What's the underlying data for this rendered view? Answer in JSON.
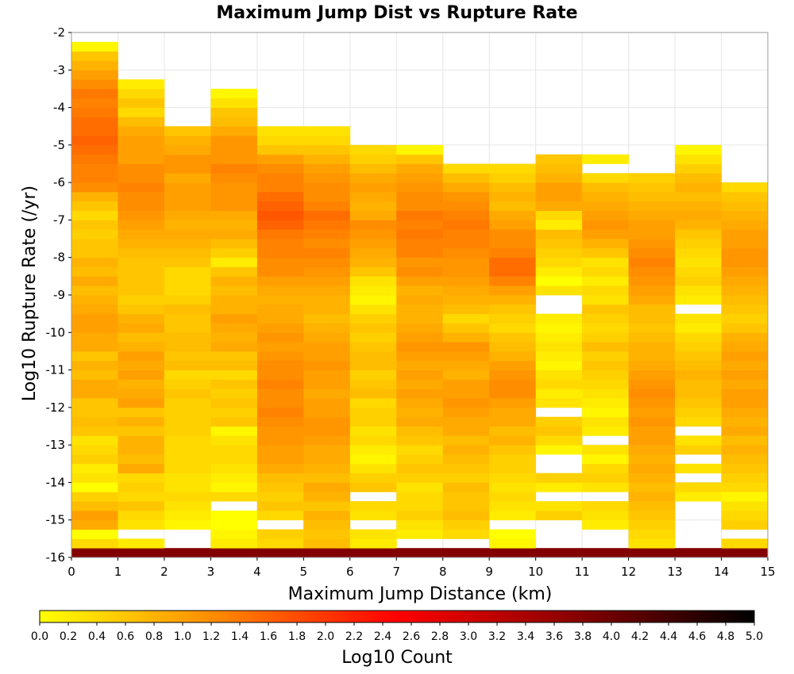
{
  "chart_data": {
    "type": "heatmap",
    "title": "Maximum Jump Dist vs Rupture Rate",
    "xlabel": "Maximum Jump Distance (km)",
    "ylabel": "Log10 Rupture Rate (/yr)",
    "xlim": [
      0,
      15
    ],
    "ylim": [
      -16,
      -2
    ],
    "x_ticks": [
      0,
      1,
      2,
      3,
      4,
      5,
      6,
      7,
      8,
      9,
      10,
      11,
      12,
      13,
      14,
      15
    ],
    "y_ticks": [
      -16,
      -15,
      -14,
      -13,
      -12,
      -11,
      -10,
      -9,
      -8,
      -7,
      -6,
      -5,
      -4,
      -3,
      -2
    ],
    "cell_size": {
      "x": 1,
      "y": 0.25
    },
    "colorbar": {
      "label": "Log10 Count",
      "range": [
        0,
        5
      ],
      "ticks": [
        0.0,
        0.2,
        0.4,
        0.6,
        0.8,
        1.0,
        1.2,
        1.4,
        1.6,
        1.8,
        2.0,
        2.2,
        2.4,
        2.6,
        2.8,
        3.0,
        3.2,
        3.4,
        3.6,
        3.8,
        4.0,
        4.2,
        4.4,
        4.6,
        4.8,
        5.0
      ],
      "tick_labels": [
        "0.0",
        "0.2",
        "0.4",
        "0.6",
        "0.8",
        "1.0",
        "1.2",
        "1.4",
        "1.6",
        "1.8",
        "2.0",
        "2.2",
        "2.4",
        "2.6",
        "2.8",
        "3.0",
        "3.2",
        "3.4",
        "3.6",
        "3.8",
        "4.0",
        "4.2",
        "4.4",
        "4.6",
        "4.8",
        "5.0"
      ],
      "colors": [
        "#ffff00",
        "#ffc400",
        "#ff8800",
        "#ff4400",
        "#ff0000",
        "#c40000",
        "#880000",
        "#440000",
        "#000000"
      ],
      "position": "bottom"
    },
    "columns": [
      {
        "x": 0.5,
        "y_min": -16,
        "values": [
          3.8,
          0.4,
          0.0,
          0.9,
          1.0,
          0.7,
          0.5,
          0.0,
          0.3,
          0.2,
          0.5,
          0.4,
          0.3,
          0.6,
          0.7,
          0.6,
          0.6,
          0.9,
          0.9,
          0.7,
          0.8,
          0.6,
          0.9,
          0.9,
          1.0,
          1.0,
          0.9,
          0.8,
          0.7,
          0.9,
          0.7,
          0.8,
          0.6,
          0.6,
          0.5,
          0.6,
          0.4,
          0.6,
          0.8,
          1.2,
          1.3,
          1.3,
          1.4,
          1.5,
          1.6,
          1.5,
          1.5,
          1.4,
          1.3,
          1.4,
          1.2,
          1.0,
          0.8,
          0.6,
          0.1
        ]
      },
      {
        "x": 1.5,
        "y_min": -16,
        "values": [
          3.8,
          0.2,
          null,
          0.3,
          0.4,
          0.6,
          0.4,
          0.5,
          0.4,
          0.9,
          0.7,
          0.8,
          0.8,
          0.6,
          0.8,
          0.6,
          1.0,
          0.9,
          0.8,
          1.0,
          0.9,
          1.0,
          0.8,
          0.7,
          0.9,
          0.8,
          0.6,
          0.5,
          0.6,
          0.6,
          0.6,
          0.6,
          0.7,
          0.8,
          0.9,
          1.0,
          1.1,
          1.2,
          1.2,
          1.3,
          1.2,
          1.2,
          1.0,
          1.0,
          1.0,
          0.9,
          0.7,
          0.4,
          0.6,
          0.4,
          0.2
        ]
      },
      {
        "x": 2.5,
        "y_min": -16,
        "values": [
          3.8,
          null,
          null,
          0.1,
          0.2,
          0.3,
          0.4,
          0.3,
          0.3,
          0.4,
          0.4,
          0.4,
          0.4,
          0.5,
          0.5,
          0.5,
          0.5,
          0.6,
          0.5,
          0.4,
          0.7,
          0.6,
          0.7,
          0.7,
          0.6,
          0.6,
          0.7,
          0.5,
          0.4,
          0.4,
          0.4,
          0.6,
          0.7,
          0.8,
          0.9,
          0.8,
          0.9,
          1.0,
          1.0,
          1.0,
          0.9,
          1.1,
          1.1,
          0.9,
          0.8,
          0.6
        ]
      },
      {
        "x": 3.5,
        "y_min": -16,
        "values": [
          3.8,
          0.2,
          0.1,
          0.0,
          0.0,
          null,
          0.4,
          0.1,
          0.2,
          0.3,
          0.4,
          0.4,
          0.3,
          0.1,
          0.6,
          0.5,
          0.6,
          0.5,
          0.6,
          0.4,
          0.7,
          0.6,
          0.9,
          0.8,
          0.9,
          1.0,
          0.8,
          0.8,
          0.7,
          0.8,
          0.6,
          0.2,
          0.5,
          0.7,
          0.9,
          0.8,
          0.9,
          1.1,
          1.1,
          1.1,
          1.2,
          1.3,
          1.1,
          1.1,
          1.1,
          0.9,
          0.7,
          0.6,
          0.3,
          0.1
        ]
      },
      {
        "x": 4.5,
        "y_min": -16,
        "values": [
          3.8,
          0.4,
          0.5,
          null,
          0.4,
          0.6,
          0.5,
          0.6,
          0.7,
          0.9,
          1.0,
          1.0,
          1.1,
          1.1,
          1.2,
          1.3,
          1.2,
          1.2,
          1.3,
          1.2,
          1.2,
          1.1,
          1.0,
          1.1,
          1.0,
          0.9,
          0.9,
          0.8,
          0.9,
          1.0,
          1.2,
          1.2,
          1.3,
          1.3,
          1.4,
          1.6,
          1.7,
          1.6,
          1.5,
          1.3,
          1.3,
          1.2,
          1.0,
          0.6,
          0.4,
          0.3
        ]
      },
      {
        "x": 5.5,
        "y_min": -16,
        "values": [
          3.8,
          0.7,
          0.6,
          0.7,
          0.8,
          0.6,
          0.8,
          0.9,
          0.7,
          0.8,
          0.9,
          0.9,
          1.0,
          1.1,
          1.1,
          1.0,
          1.0,
          0.9,
          1.0,
          1.0,
          1.1,
          1.0,
          1.0,
          0.9,
          0.8,
          0.7,
          0.8,
          0.8,
          0.9,
          1.0,
          1.1,
          1.2,
          1.3,
          1.2,
          1.3,
          1.4,
          1.5,
          1.3,
          1.2,
          1.2,
          1.1,
          1.0,
          0.8,
          0.6,
          0.4,
          0.3
        ]
      },
      {
        "x": 6.5,
        "y_min": -16,
        "values": [
          3.8,
          0.2,
          0.3,
          null,
          0.3,
          0.4,
          null,
          0.6,
          0.5,
          0.3,
          0.1,
          0.2,
          0.4,
          0.3,
          0.5,
          0.5,
          0.4,
          0.7,
          0.6,
          0.5,
          0.7,
          0.7,
          0.6,
          0.5,
          0.6,
          0.5,
          0.3,
          0.1,
          0.2,
          0.3,
          0.6,
          0.8,
          0.9,
          1.0,
          1.1,
          1.2,
          0.9,
          0.8,
          0.9,
          1.0,
          0.9,
          0.7,
          0.5,
          0.4
        ]
      },
      {
        "x": 7.5,
        "y_min": -16,
        "values": [
          3.8,
          null,
          0.2,
          0.3,
          0.5,
          0.4,
          0.4,
          0.3,
          0.5,
          0.6,
          0.5,
          0.4,
          0.6,
          0.7,
          0.9,
          0.8,
          0.9,
          1.0,
          0.9,
          1.0,
          0.9,
          1.0,
          1.1,
          1.0,
          0.9,
          0.8,
          0.8,
          0.9,
          0.8,
          1.0,
          1.2,
          1.1,
          1.3,
          1.3,
          1.4,
          1.3,
          1.4,
          1.2,
          1.2,
          1.1,
          1.0,
          0.9,
          0.6,
          0.1
        ]
      },
      {
        "x": 8.5,
        "y_min": -16,
        "values": [
          3.8,
          null,
          0.4,
          0.5,
          0.7,
          0.6,
          0.6,
          0.7,
          0.5,
          0.6,
          0.7,
          0.8,
          0.7,
          0.9,
          0.9,
          1.0,
          1.1,
          1.0,
          1.0,
          0.8,
          0.9,
          1.0,
          1.1,
          0.8,
          0.6,
          0.4,
          0.7,
          0.8,
          0.9,
          1.0,
          1.1,
          1.1,
          1.2,
          1.3,
          1.3,
          1.4,
          1.3,
          1.2,
          1.1,
          0.9,
          0.7,
          0.4
        ]
      },
      {
        "x": 9.5,
        "y_min": -16,
        "values": [
          3.8,
          0.1,
          0.0,
          null,
          0.2,
          0.3,
          0.4,
          0.3,
          0.4,
          0.5,
          0.5,
          0.6,
          0.8,
          0.7,
          0.9,
          0.9,
          1.0,
          1.2,
          1.2,
          1.1,
          1.0,
          0.8,
          0.7,
          0.6,
          0.4,
          0.5,
          0.6,
          0.8,
          1.0,
          1.3,
          1.5,
          1.5,
          1.3,
          1.2,
          1.2,
          1.0,
          0.9,
          0.7,
          0.8,
          0.7,
          0.5,
          0.4
        ]
      },
      {
        "x": 10.5,
        "y_min": -16,
        "values": [
          3.8,
          null,
          null,
          null,
          0.5,
          0.3,
          null,
          0.2,
          0.5,
          null,
          null,
          0.1,
          0.4,
          0.6,
          0.5,
          null,
          0.3,
          0.2,
          0.4,
          0.3,
          0.1,
          0.2,
          0.3,
          0.2,
          0.1,
          0.2,
          null,
          null,
          0.3,
          0.0,
          0.2,
          0.4,
          0.5,
          0.6,
          0.7,
          0.2,
          0.4,
          0.9,
          1.0,
          1.0,
          0.8,
          0.7,
          0.6
        ]
      },
      {
        "x": 11.5,
        "y_min": -16,
        "values": [
          3.8,
          null,
          null,
          0.2,
          0.3,
          0.4,
          null,
          0.3,
          0.5,
          0.4,
          0.1,
          0.3,
          null,
          0.2,
          0.3,
          0.1,
          0.2,
          0.3,
          0.4,
          0.5,
          0.6,
          0.5,
          0.7,
          0.5,
          0.4,
          0.5,
          0.6,
          0.3,
          0.4,
          0.2,
          0.4,
          0.3,
          0.6,
          0.8,
          1.0,
          1.1,
          1.0,
          0.9,
          0.8,
          0.7,
          0.4,
          null,
          0.2
        ]
      },
      {
        "x": 12.5,
        "y_min": -16,
        "values": [
          3.8,
          0.3,
          0.4,
          0.5,
          0.6,
          0.7,
          0.8,
          0.7,
          0.8,
          0.9,
          0.8,
          0.9,
          1.0,
          1.0,
          1.1,
          1.0,
          1.1,
          1.2,
          1.1,
          1.0,
          0.9,
          0.8,
          0.8,
          0.7,
          0.6,
          0.7,
          0.7,
          0.9,
          1.0,
          1.1,
          1.2,
          1.3,
          1.2,
          1.1,
          1.0,
          1.0,
          0.9,
          0.8,
          0.7,
          0.6,
          0.5
        ]
      },
      {
        "x": 13.5,
        "y_min": -16,
        "values": [
          3.8,
          null,
          null,
          null,
          null,
          null,
          0.2,
          0.4,
          null,
          0.3,
          null,
          0.5,
          0.3,
          null,
          0.4,
          0.5,
          0.6,
          0.7,
          0.7,
          0.8,
          0.7,
          0.6,
          0.5,
          0.4,
          0.2,
          0.3,
          null,
          0.2,
          0.3,
          0.5,
          0.4,
          0.3,
          0.4,
          0.5,
          0.6,
          0.8,
          0.9,
          0.8,
          0.7,
          0.8,
          0.7,
          0.5,
          0.3,
          0.1
        ]
      },
      {
        "x": 14.5,
        "y_min": -16,
        "values": [
          3.8,
          0.4,
          null,
          0.5,
          0.4,
          0.3,
          0.1,
          0.4,
          0.5,
          0.6,
          0.7,
          0.8,
          0.7,
          0.9,
          0.8,
          0.9,
          1.0,
          1.0,
          0.9,
          1.0,
          0.9,
          1.0,
          0.9,
          0.8,
          0.6,
          0.5,
          0.6,
          0.7,
          0.8,
          0.9,
          1.0,
          1.1,
          1.1,
          1.0,
          1.0,
          0.9,
          0.8,
          0.7,
          0.6,
          0.4
        ]
      }
    ]
  }
}
